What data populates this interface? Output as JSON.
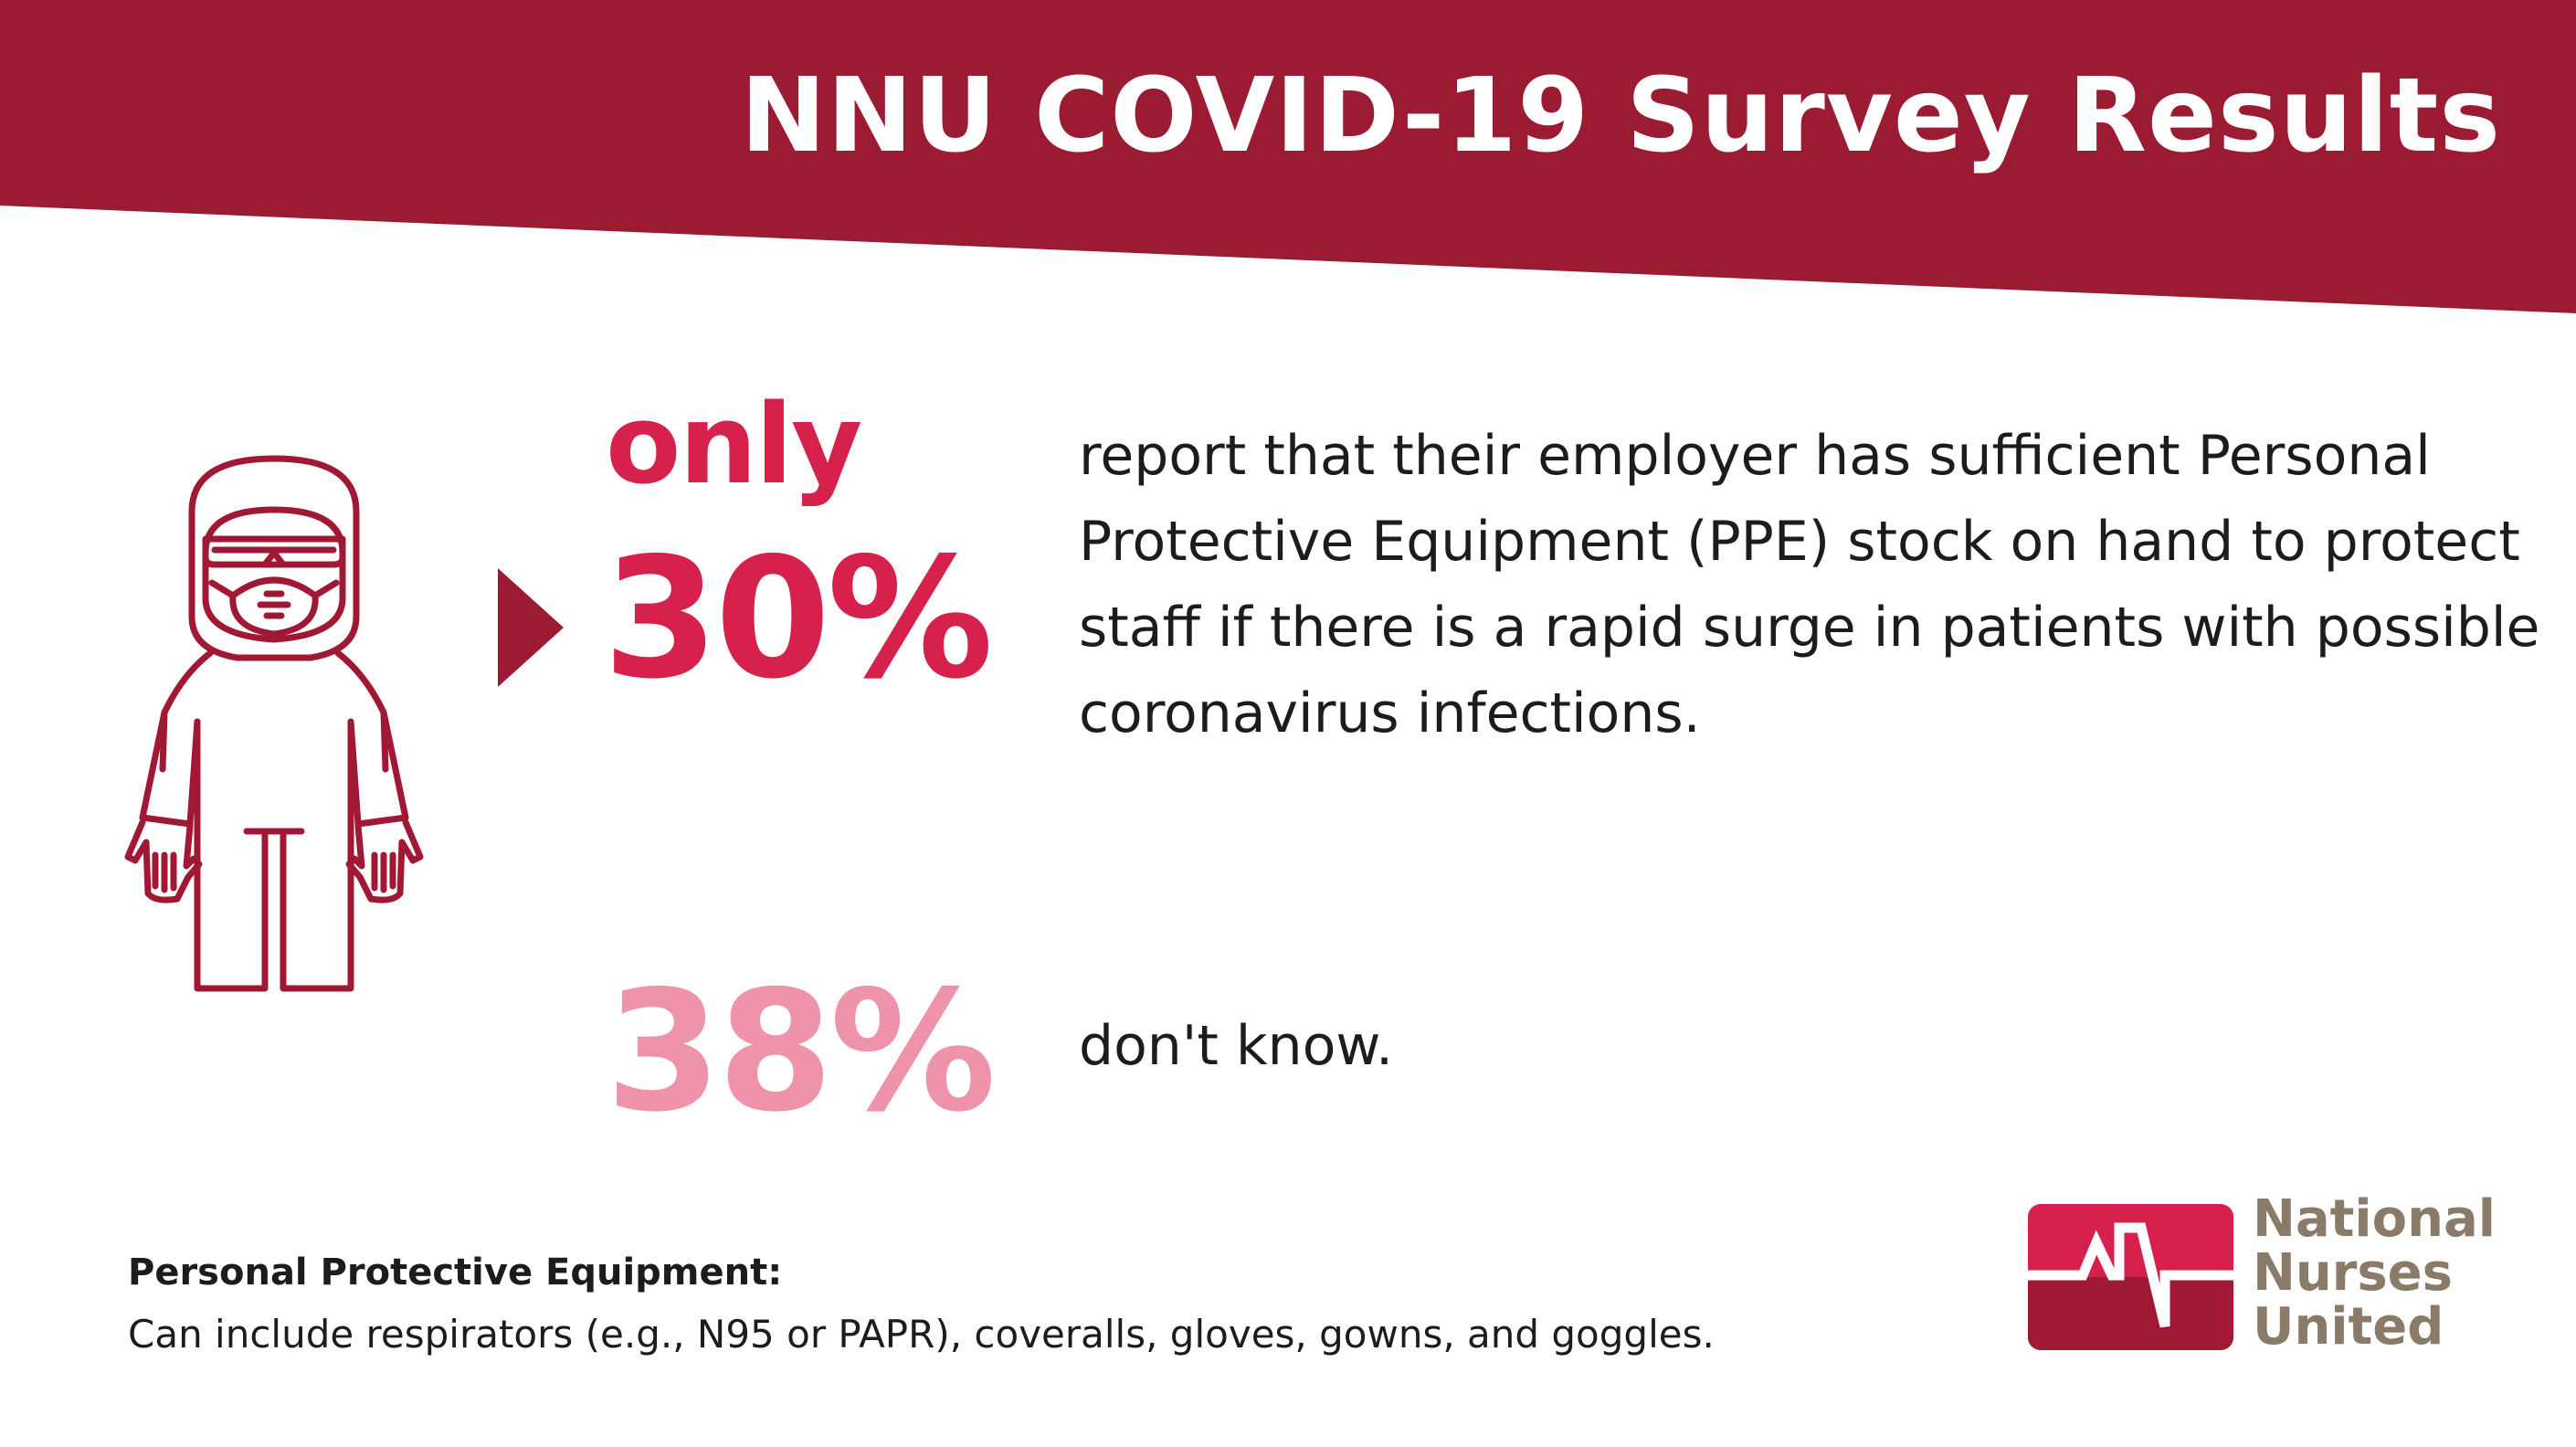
{
  "header": {
    "title": "NNU COVID-19 Survey Results"
  },
  "stats": [
    {
      "prefix": "only",
      "value": "30%",
      "description": "report that their employer has sufficient Personal Protective Equipment (PPE) stock on hand to protect staff if there is a rapid surge in patients with possible coronavirus infections."
    },
    {
      "value": "38%",
      "description": "don't know."
    }
  ],
  "footnote": {
    "title": "Personal Protective Equipment:",
    "text": "Can include respirators (e.g., N95 or PAPR), coveralls, gloves, gowns, and goggles."
  },
  "logo": {
    "line1": "National",
    "line2": "Nurses",
    "line3": "United"
  },
  "icons": {
    "figure": "ppe-suit-figure-icon",
    "arrow": "triangle-arrow-icon",
    "logo": "nnu-logo-mark"
  },
  "colors": {
    "banner": "#9a1b32",
    "primary_stat": "#d5214c",
    "secondary_stat": "#ee93a9",
    "figure_outline": "#a01834",
    "logo_text": "#8a7b69"
  }
}
